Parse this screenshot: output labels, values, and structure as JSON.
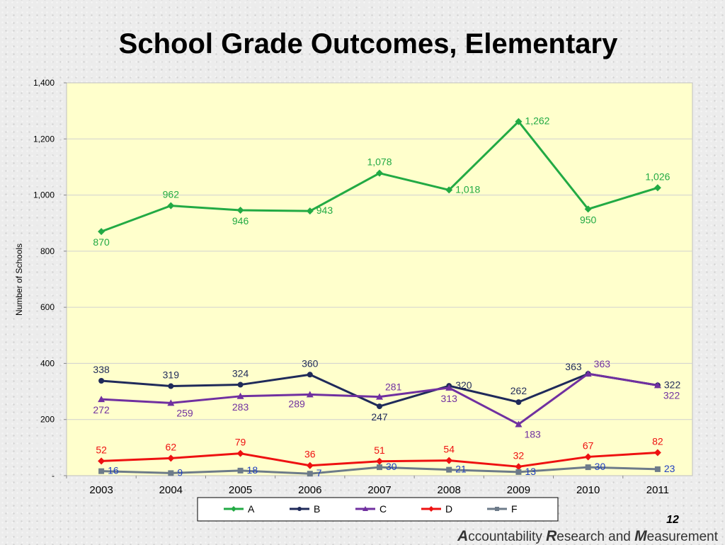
{
  "slide": {
    "title": "School Grade Outcomes, Elementary",
    "page_number": "12",
    "footer": [
      {
        "initial": "A",
        "rest": "ccountability "
      },
      {
        "initial": "R",
        "rest": "esearch and "
      },
      {
        "initial": "M",
        "rest": "easurement"
      }
    ]
  },
  "chart_data": {
    "type": "line",
    "title": "",
    "xlabel": "",
    "ylabel": "Number of Schools",
    "categories": [
      "2003",
      "2004",
      "2005",
      "2006",
      "2007",
      "2008",
      "2009",
      "2010",
      "2011"
    ],
    "ylim": [
      0,
      1400
    ],
    "yticks": [
      {
        "value": 0,
        "label": "-"
      },
      {
        "value": 200,
        "label": "200"
      },
      {
        "value": 400,
        "label": "400"
      },
      {
        "value": 600,
        "label": "600"
      },
      {
        "value": 800,
        "label": "800"
      },
      {
        "value": 1000,
        "label": "1,000"
      },
      {
        "value": 1200,
        "label": "1,200"
      },
      {
        "value": 1400,
        "label": "1,400"
      }
    ],
    "grid": true,
    "legend_position": "bottom",
    "plot_background": "#ffffcc",
    "series": [
      {
        "name": "A",
        "color": "#22aa44",
        "marker": "diamond",
        "values": [
          870,
          962,
          946,
          943,
          1078,
          1018,
          1262,
          950,
          1026
        ],
        "labels": [
          "870",
          "962",
          "946",
          "943",
          "1,078",
          "1,018",
          "1,262",
          "950",
          "1,026"
        ],
        "label_pos": [
          "below",
          "above",
          "below",
          "right",
          "above",
          "right",
          "right",
          "below",
          "above"
        ]
      },
      {
        "name": "B",
        "color": "#1f2a5a",
        "marker": "circle",
        "values": [
          338,
          319,
          324,
          360,
          247,
          320,
          262,
          363,
          322
        ],
        "labels": [
          "338",
          "319",
          "324",
          "360",
          "247",
          "320",
          "262",
          "363",
          "322"
        ],
        "label_pos": [
          "above",
          "above",
          "above",
          "above",
          "below",
          "right",
          "above",
          "left",
          "right"
        ]
      },
      {
        "name": "C",
        "color": "#7030a0",
        "marker": "triangle",
        "values": [
          272,
          259,
          283,
          289,
          281,
          313,
          183,
          363,
          322
        ],
        "labels": [
          "272",
          "259",
          "283",
          "289",
          "281",
          "313",
          "183",
          "363",
          "322"
        ],
        "label_pos": [
          "below",
          "right-below",
          "below",
          "left-below",
          "right-above",
          "below",
          "right-below",
          "right-above",
          "right-below"
        ]
      },
      {
        "name": "D",
        "color": "#ee1111",
        "marker": "diamond",
        "values": [
          52,
          62,
          79,
          36,
          51,
          54,
          32,
          67,
          82
        ],
        "labels": [
          "52",
          "62",
          "79",
          "36",
          "51",
          "54",
          "32",
          "67",
          "82"
        ],
        "label_pos": [
          "above",
          "above",
          "above",
          "above",
          "above",
          "above",
          "above",
          "above",
          "above"
        ]
      },
      {
        "name": "F",
        "color": "#6d7b8a",
        "marker": "square",
        "values": [
          16,
          9,
          18,
          7,
          30,
          21,
          13,
          30,
          23
        ],
        "labels": [
          "16",
          "9",
          "18",
          "7",
          "30",
          "21",
          "13",
          "30",
          "23"
        ],
        "label_pos": [
          "right",
          "right",
          "right",
          "right",
          "right",
          "right",
          "right",
          "right",
          "right"
        ]
      }
    ],
    "label_color_overrides": {
      "F": "#1f3fbf"
    }
  }
}
